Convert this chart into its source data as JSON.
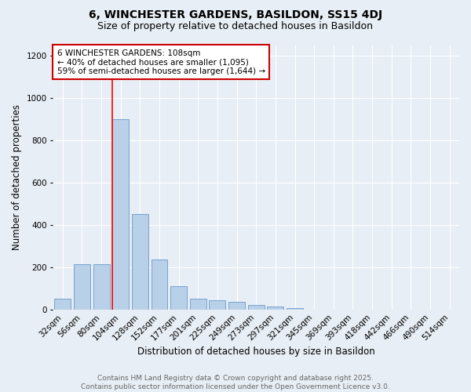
{
  "title": "6, WINCHESTER GARDENS, BASILDON, SS15 4DJ",
  "subtitle": "Size of property relative to detached houses in Basildon",
  "xlabel": "Distribution of detached houses by size in Basildon",
  "ylabel": "Number of detached properties",
  "categories": [
    "32sqm",
    "56sqm",
    "80sqm",
    "104sqm",
    "128sqm",
    "152sqm",
    "177sqm",
    "201sqm",
    "225sqm",
    "249sqm",
    "273sqm",
    "297sqm",
    "321sqm",
    "345sqm",
    "369sqm",
    "393sqm",
    "418sqm",
    "442sqm",
    "466sqm",
    "490sqm",
    "514sqm"
  ],
  "values": [
    50,
    215,
    215,
    900,
    450,
    235,
    110,
    50,
    45,
    35,
    20,
    15,
    8,
    0,
    0,
    0,
    0,
    0,
    0,
    0,
    0
  ],
  "bar_color": "#b8d0e8",
  "bar_edge_color": "#6699cc",
  "red_line_index": 3,
  "annotation_line1": "6 WINCHESTER GARDENS: 108sqm",
  "annotation_line2": "← 40% of detached houses are smaller (1,095)",
  "annotation_line3": "59% of semi-detached houses are larger (1,644) →",
  "annotation_box_color": "#ffffff",
  "annotation_box_edge": "#cc0000",
  "ylim": [
    0,
    1250
  ],
  "yticks": [
    0,
    200,
    400,
    600,
    800,
    1000,
    1200
  ],
  "footer1": "Contains HM Land Registry data © Crown copyright and database right 2025.",
  "footer2": "Contains public sector information licensed under the Open Government Licence v3.0.",
  "background_color": "#e8eef5",
  "plot_background": "#e8eef5",
  "title_fontsize": 10,
  "subtitle_fontsize": 9,
  "axis_label_fontsize": 8.5,
  "tick_fontsize": 7.5,
  "annotation_fontsize": 7.5,
  "footer_fontsize": 6.5
}
